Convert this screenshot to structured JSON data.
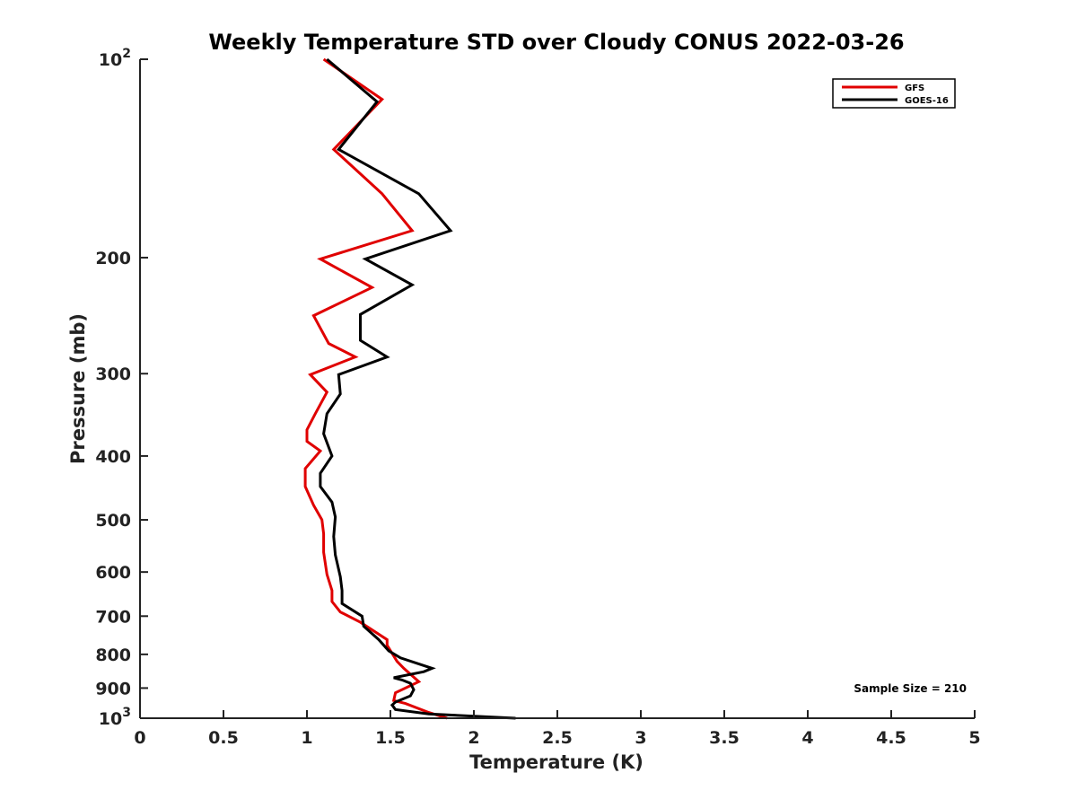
{
  "chart_data": {
    "type": "line",
    "title": "Weekly Temperature STD over Cloudy CONUS 2022-03-26",
    "xlabel": "Temperature (K)",
    "ylabel": "Pressure (mb)",
    "xlim": [
      0,
      5
    ],
    "ylim": [
      100,
      1000
    ],
    "y_scale": "log",
    "y_reversed": true,
    "grid": false,
    "legend_position": "top-right",
    "x_ticks": [
      0,
      0.5,
      1,
      1.5,
      2,
      2.5,
      3,
      3.5,
      4,
      4.5,
      5
    ],
    "x_tick_labels": [
      "0",
      "0.5",
      "1",
      "1.5",
      "2",
      "2.5",
      "3",
      "3.5",
      "4",
      "4.5",
      "5"
    ],
    "y_ticks": [
      100,
      200,
      300,
      400,
      500,
      600,
      700,
      800,
      900,
      1000
    ],
    "y_tick_labels": [
      {
        "base": "10",
        "exp": "2"
      },
      {
        "base": "200",
        "exp": ""
      },
      {
        "base": "300",
        "exp": ""
      },
      {
        "base": "400",
        "exp": ""
      },
      {
        "base": "500",
        "exp": ""
      },
      {
        "base": "600",
        "exp": ""
      },
      {
        "base": "700",
        "exp": ""
      },
      {
        "base": "800",
        "exp": ""
      },
      {
        "base": "900",
        "exp": ""
      },
      {
        "base": "10",
        "exp": "3"
      }
    ],
    "annotation": "Sample Size = 210",
    "series": [
      {
        "name": "GFS",
        "color": "#e00000",
        "points": [
          [
            1.1,
            100
          ],
          [
            1.45,
            115
          ],
          [
            1.16,
            137
          ],
          [
            1.45,
            160
          ],
          [
            1.63,
            182
          ],
          [
            1.08,
            201
          ],
          [
            1.39,
            222
          ],
          [
            1.04,
            245
          ],
          [
            1.13,
            270
          ],
          [
            1.29,
            283
          ],
          [
            1.02,
            301
          ],
          [
            1.12,
            320
          ],
          [
            1.05,
            345
          ],
          [
            1.0,
            365
          ],
          [
            1.0,
            380
          ],
          [
            1.08,
            393
          ],
          [
            0.99,
            418
          ],
          [
            0.99,
            445
          ],
          [
            1.04,
            475
          ],
          [
            1.09,
            500
          ],
          [
            1.1,
            525
          ],
          [
            1.1,
            560
          ],
          [
            1.12,
            605
          ],
          [
            1.15,
            640
          ],
          [
            1.15,
            665
          ],
          [
            1.2,
            690
          ],
          [
            1.32,
            715
          ],
          [
            1.48,
            760
          ],
          [
            1.48,
            775
          ],
          [
            1.54,
            820
          ],
          [
            1.58,
            840
          ],
          [
            1.67,
            880
          ],
          [
            1.53,
            915
          ],
          [
            1.52,
            940
          ],
          [
            1.59,
            950
          ],
          [
            1.73,
            980
          ],
          [
            1.84,
            1000
          ]
        ]
      },
      {
        "name": "GOES-16",
        "color": "#000000",
        "points": [
          [
            1.12,
            100
          ],
          [
            1.42,
            116
          ],
          [
            1.19,
            137
          ],
          [
            1.67,
            160
          ],
          [
            1.86,
            182
          ],
          [
            1.35,
            201
          ],
          [
            1.63,
            220
          ],
          [
            1.32,
            244
          ],
          [
            1.32,
            267
          ],
          [
            1.48,
            283
          ],
          [
            1.19,
            301
          ],
          [
            1.2,
            322
          ],
          [
            1.12,
            345
          ],
          [
            1.1,
            370
          ],
          [
            1.15,
            400
          ],
          [
            1.08,
            425
          ],
          [
            1.08,
            445
          ],
          [
            1.15,
            470
          ],
          [
            1.17,
            495
          ],
          [
            1.16,
            530
          ],
          [
            1.17,
            565
          ],
          [
            1.2,
            610
          ],
          [
            1.21,
            640
          ],
          [
            1.21,
            670
          ],
          [
            1.33,
            700
          ],
          [
            1.34,
            725
          ],
          [
            1.43,
            760
          ],
          [
            1.49,
            790
          ],
          [
            1.56,
            810
          ],
          [
            1.75,
            840
          ],
          [
            1.7,
            850
          ],
          [
            1.52,
            868
          ],
          [
            1.57,
            875
          ],
          [
            1.62,
            885
          ],
          [
            1.64,
            905
          ],
          [
            1.62,
            925
          ],
          [
            1.53,
            945
          ],
          [
            1.51,
            955
          ],
          [
            1.53,
            970
          ],
          [
            1.73,
            985
          ],
          [
            2.25,
            1000
          ]
        ]
      }
    ]
  }
}
